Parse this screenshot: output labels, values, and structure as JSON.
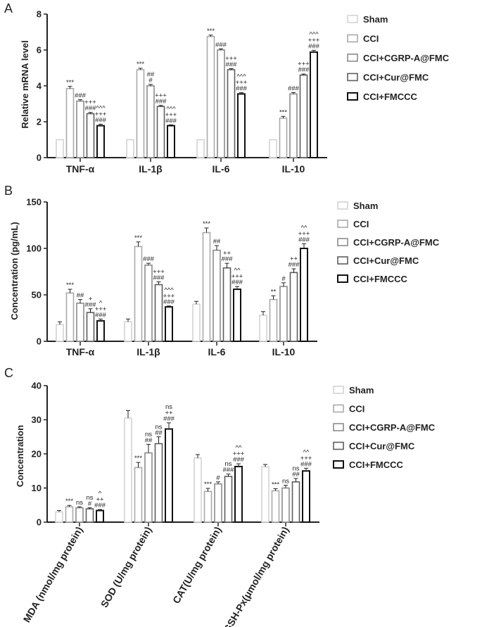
{
  "colors": {
    "Sham": "#d4d4d4",
    "CCI": "#aaaaaa",
    "CCI+CGRP-A@FMC": "#8c8c8c",
    "CCI+Cur@FMC": "#5e5e5e",
    "CCI+FMCCC": "#111111"
  },
  "chart_data": [
    {
      "panel": "A",
      "type": "bar",
      "title": "",
      "xlabel": "",
      "ylabel": "Relative mRNA level",
      "ylim": [
        0,
        8
      ],
      "yticks": [
        "0",
        "2",
        "4",
        "6",
        "8"
      ],
      "categories": [
        "TNF-α",
        "IL-1β",
        "IL-6",
        "IL-10"
      ],
      "legend": [
        "Sham",
        "CCI",
        "CCI+CGRP-A@FMC",
        "CCI+Cur@FMC",
        "CCI+FMCCC"
      ],
      "series": [
        {
          "name": "Sham",
          "values": [
            1,
            1,
            1,
            1
          ],
          "errors": [
            0,
            0,
            0,
            0
          ]
        },
        {
          "name": "CCI",
          "values": [
            3.85,
            4.9,
            6.75,
            2.2
          ],
          "errors": [
            0.12,
            0.08,
            0.08,
            0.1
          ]
        },
        {
          "name": "CCI+CGRP-A@FMC",
          "values": [
            3.15,
            4.0,
            6.0,
            3.55
          ],
          "errors": [
            0.08,
            0.08,
            0.06,
            0.08
          ]
        },
        {
          "name": "CCI+Cur@FMC",
          "values": [
            2.45,
            2.85,
            4.9,
            4.6
          ],
          "errors": [
            0.07,
            0.06,
            0.06,
            0.06
          ]
        },
        {
          "name": "CCI+FMCCC",
          "values": [
            1.78,
            1.78,
            3.55,
            5.88
          ],
          "errors": [
            0.08,
            0.05,
            0.07,
            0.1
          ]
        }
      ],
      "annotations": [
        [
          "",
          "***",
          "###",
          "+++\n###",
          "^^^\n+++\n###"
        ],
        [
          "",
          "***",
          "##\n#",
          "+++\n###",
          "^^^\n+++\n###"
        ],
        [
          "",
          "***",
          "###",
          "+++\n###",
          "^^^\n+++\n###"
        ],
        [
          "",
          "***",
          "###",
          "+++\n###",
          "^^^\n+++\n###"
        ]
      ]
    },
    {
      "panel": "B",
      "type": "bar",
      "title": "",
      "xlabel": "",
      "ylabel": "Concentration (pg/mL)",
      "ylim": [
        0,
        150
      ],
      "yticks": [
        "0",
        "50",
        "100",
        "150"
      ],
      "categories": [
        "TNF-α",
        "IL-1β",
        "IL-6",
        "IL-10"
      ],
      "legend": [
        "Sham",
        "CCI",
        "CCI+CGRP-A@FMC",
        "CCI+Cur@FMC",
        "CCI+FMCCC"
      ],
      "series": [
        {
          "name": "Sham",
          "values": [
            18,
            21,
            40,
            28
          ],
          "errors": [
            3,
            3,
            3,
            4
          ]
        },
        {
          "name": "CCI",
          "values": [
            52,
            102,
            117,
            45
          ],
          "errors": [
            4,
            5,
            5,
            4
          ]
        },
        {
          "name": "CCI+CGRP-A@FMC",
          "values": [
            41,
            82,
            98,
            59
          ],
          "errors": [
            4,
            2,
            5,
            4
          ]
        },
        {
          "name": "CCI+Cur@FMC",
          "values": [
            31,
            61,
            79,
            74
          ],
          "errors": [
            4,
            3,
            5,
            4
          ]
        },
        {
          "name": "CCI+FMCCC",
          "values": [
            22,
            37,
            56,
            100
          ],
          "errors": [
            2,
            1,
            3,
            5
          ]
        }
      ],
      "annotations": [
        [
          "",
          "***",
          "##",
          "+\n###",
          "^\n+++\n###"
        ],
        [
          "",
          "***",
          "###",
          "+++\n###",
          "^^^\n+++\n###"
        ],
        [
          "",
          "***",
          "##",
          "++\n###",
          "^^\n+++\n###"
        ],
        [
          "",
          "**",
          "#",
          "++\n###",
          "^^\n+++\n###"
        ]
      ]
    },
    {
      "panel": "C",
      "type": "bar",
      "title": "",
      "xlabel": "",
      "ylabel": "Concentration",
      "ylim": [
        0,
        40
      ],
      "yticks": [
        "0",
        "10",
        "20",
        "30",
        "40"
      ],
      "categories": [
        "MDA (nmol/mg protein)",
        "SOD (U/mg protein)",
        "CAT(U/mg protein)",
        "GSH-Px(μmol/mg protein)"
      ],
      "legend": [
        "Sham",
        "CCI",
        "CCI+CGRP-A@FMC",
        "CCI+Cur@FMC",
        "CCI+FMCCC"
      ],
      "series": [
        {
          "name": "Sham",
          "values": [
            3.0,
            30.5,
            18.8,
            16.2
          ],
          "errors": [
            0.4,
            2.2,
            1.0,
            0.7
          ]
        },
        {
          "name": "CCI",
          "values": [
            4.5,
            16.0,
            9.0,
            9.2
          ],
          "errors": [
            0.4,
            1.5,
            0.9,
            0.6
          ]
        },
        {
          "name": "CCI+CGRP-A@FMC",
          "values": [
            4.2,
            20.3,
            11.2,
            10.0
          ],
          "errors": [
            0.3,
            2.5,
            0.6,
            0.8
          ]
        },
        {
          "name": "CCI+Cur@FMC",
          "values": [
            3.9,
            23.0,
            13.4,
            11.8
          ],
          "errors": [
            0.3,
            2.0,
            0.7,
            1.0
          ]
        },
        {
          "name": "CCI+FMCCC",
          "values": [
            3.4,
            27.3,
            16.3,
            15.0
          ],
          "errors": [
            0.3,
            1.8,
            0.8,
            0.8
          ]
        }
      ],
      "annotations": [
        [
          "",
          "***",
          "ns",
          "ns\n#",
          "^\n++\n###"
        ],
        [
          "",
          "***",
          "ns\n##",
          "ns\n##",
          "ns\n++\n###"
        ],
        [
          "",
          "***",
          "#",
          "ns\n###",
          "^^\n+++\n###"
        ],
        [
          "",
          "***",
          "ns",
          "ns\n##",
          "^^\n+++\n###"
        ]
      ]
    }
  ]
}
